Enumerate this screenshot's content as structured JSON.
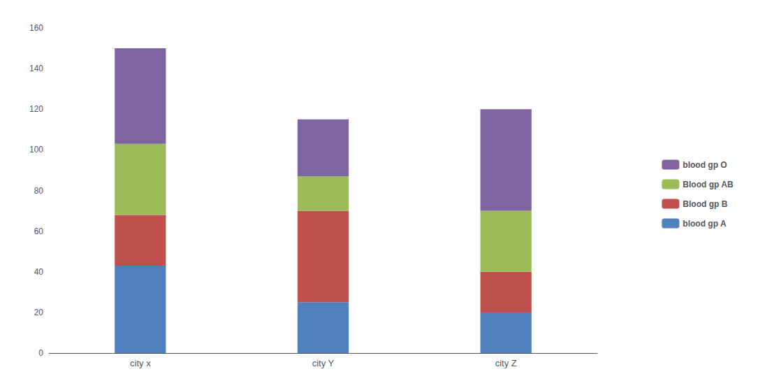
{
  "chart_data": {
    "type": "bar",
    "stacked": true,
    "categories": [
      "city x",
      "city Y",
      "city Z"
    ],
    "series": [
      {
        "name": "blood gp A",
        "color": "#4F81BD",
        "values": [
          43,
          25,
          20
        ]
      },
      {
        "name": "Blood gp B",
        "color": "#C0504D",
        "values": [
          25,
          45,
          20
        ]
      },
      {
        "name": "Blood gp AB",
        "color": "#9BBB59",
        "values": [
          35,
          17,
          30
        ]
      },
      {
        "name": "blood gp O",
        "color": "#8064A2",
        "values": [
          47,
          28,
          50
        ]
      }
    ],
    "ylim": [
      0,
      160
    ],
    "yticks": [
      0,
      20,
      40,
      60,
      80,
      100,
      120,
      140,
      160
    ],
    "grid": false,
    "legend": "right"
  }
}
